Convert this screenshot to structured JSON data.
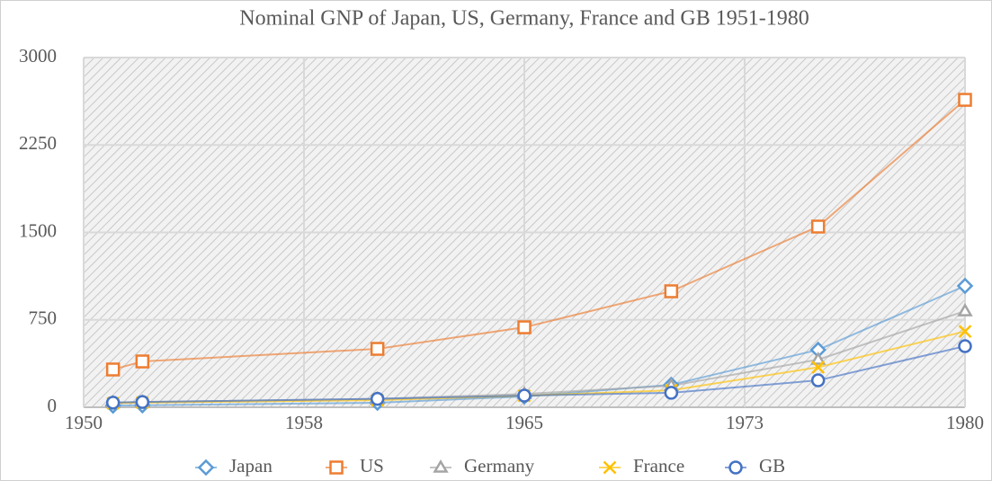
{
  "chart_data": {
    "type": "line",
    "title": "Nominal GNP of Japan, US, Germany, France and GB 1951-1980",
    "x": [
      1951,
      1952,
      1960,
      1965,
      1970,
      1975,
      1980
    ],
    "series": [
      {
        "name": "Japan",
        "color": "#5b9bd5",
        "marker": "diamond",
        "values": [
          14,
          17,
          39,
          93,
          193,
          493,
          1041
        ]
      },
      {
        "name": "US",
        "color": "#ed7d31",
        "marker": "square",
        "values": [
          324,
          393,
          501,
          686,
          995,
          1550,
          2637
        ]
      },
      {
        "name": "Germany",
        "color": "#a5a5a5",
        "marker": "triangle",
        "values": [
          39,
          45,
          72,
          114,
          185,
          409,
          825
        ]
      },
      {
        "name": "France",
        "color": "#ffc000",
        "marker": "x",
        "values": [
          35,
          40,
          61,
          99,
          146,
          343,
          651
        ]
      },
      {
        "name": "GB",
        "color": "#4472c4",
        "marker": "circle",
        "values": [
          40,
          45,
          72,
          100,
          124,
          231,
          524
        ]
      }
    ],
    "xlim": [
      1950,
      1980
    ],
    "xticks": [
      1950,
      {
        "value": 1957.5,
        "label": "1958"
      },
      1965,
      {
        "value": 1972.5,
        "label": "1973"
      },
      1980
    ],
    "ylim": [
      0,
      3000
    ],
    "yticks": [
      0,
      750,
      1500,
      2250,
      3000
    ],
    "grid": true,
    "legend": "bottom"
  }
}
